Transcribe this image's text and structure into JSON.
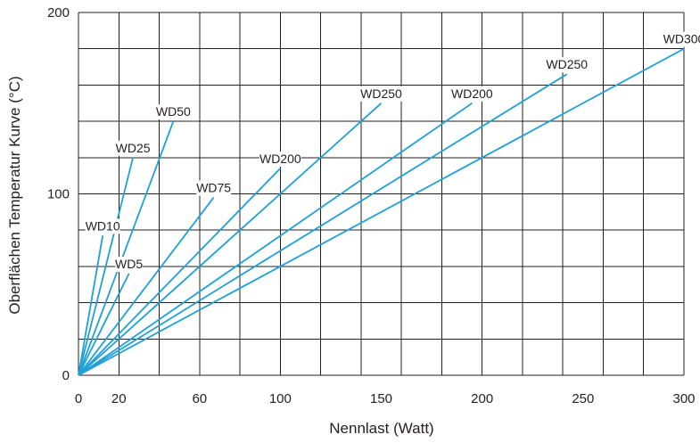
{
  "chart_data": {
    "type": "line",
    "title": "",
    "xlabel": "Nennlast (Watt)",
    "ylabel": "Oberflächen Temperatur Kurve (°C)",
    "xlim": [
      0,
      300
    ],
    "ylim": [
      0,
      200
    ],
    "x_ticks": [
      {
        "value": 0,
        "label": "0"
      },
      {
        "value": 20,
        "label": "20"
      },
      {
        "value": 60,
        "label": "60"
      },
      {
        "value": 100,
        "label": "100"
      },
      {
        "value": 150,
        "label": "150"
      },
      {
        "value": 200,
        "label": "200"
      },
      {
        "value": 250,
        "label": "250"
      },
      {
        "value": 300,
        "label": "300"
      }
    ],
    "y_ticks": [
      {
        "value": 0,
        "label": "0"
      },
      {
        "value": 100,
        "label": "100"
      },
      {
        "value": 200,
        "label": "200"
      }
    ],
    "grid": true,
    "line_color": "#1ea0d8",
    "series": [
      {
        "name": "WD5",
        "points": [
          [
            0,
            0
          ],
          [
            25,
            56
          ]
        ]
      },
      {
        "name": "WD10",
        "points": [
          [
            0,
            0
          ],
          [
            12,
            77
          ]
        ]
      },
      {
        "name": "WD25",
        "points": [
          [
            0,
            0
          ],
          [
            27,
            120
          ]
        ]
      },
      {
        "name": "WD50",
        "points": [
          [
            0,
            0
          ],
          [
            47,
            140
          ]
        ]
      },
      {
        "name": "WD75",
        "points": [
          [
            0,
            0
          ],
          [
            67,
            98
          ]
        ]
      },
      {
        "name": "WD200",
        "points": [
          [
            0,
            0
          ],
          [
            100,
            114
          ]
        ]
      },
      {
        "name": "WD250",
        "points": [
          [
            0,
            0
          ],
          [
            150,
            150
          ]
        ]
      },
      {
        "name": "WD200",
        "points": [
          [
            0,
            0
          ],
          [
            195,
            150
          ]
        ]
      },
      {
        "name": "WD250",
        "points": [
          [
            0,
            0
          ],
          [
            242,
            166
          ]
        ]
      },
      {
        "name": "WD300",
        "points": [
          [
            0,
            0
          ],
          [
            300,
            180
          ]
        ]
      }
    ]
  }
}
